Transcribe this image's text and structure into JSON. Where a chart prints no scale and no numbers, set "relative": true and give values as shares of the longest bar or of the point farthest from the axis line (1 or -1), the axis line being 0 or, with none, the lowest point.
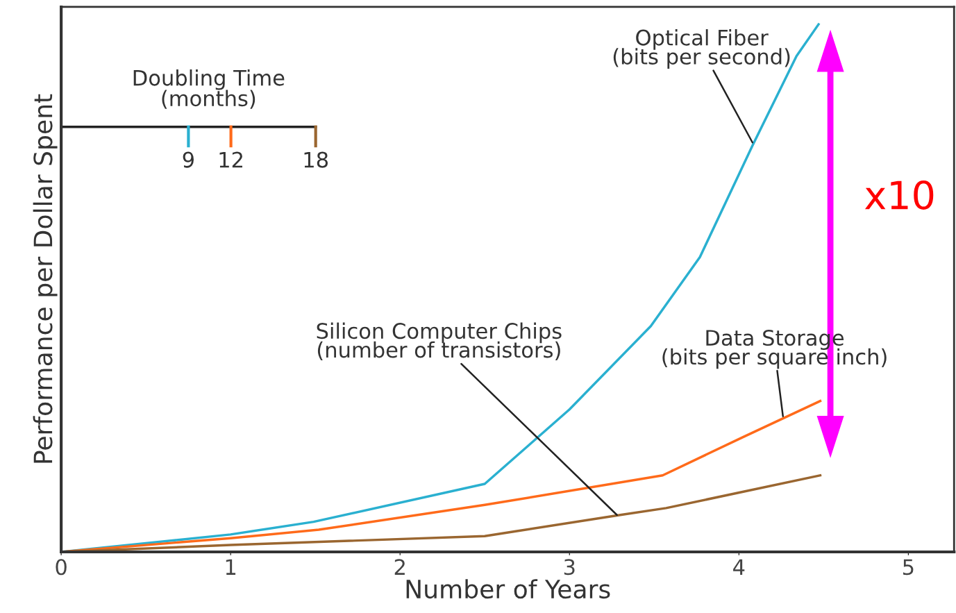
{
  "chart_data": {
    "type": "line",
    "relative": true,
    "xlabel": "Number of Years",
    "ylabel": "Performance per Dollar Spent",
    "legend_title": "Doubling Time\n(months)",
    "legend": "top left",
    "grid": false,
    "xlim": [
      0,
      5.27
    ],
    "xticks": [
      0,
      1,
      2,
      3,
      4,
      5
    ],
    "series": [
      {
        "name": "9",
        "color": "#2ab0d0",
        "x": [
          0,
          1,
          1.49,
          2.5,
          3,
          3.48,
          3.77,
          4.08,
          4.34,
          4.47
        ],
        "values": [
          0,
          0.033,
          0.057,
          0.129,
          0.27,
          0.428,
          0.559,
          0.77,
          0.94,
          1.0
        ]
      },
      {
        "name": "12",
        "color": "#ff6a1a",
        "x": [
          0,
          1,
          1.52,
          2.5,
          3.55,
          4.02,
          4.48
        ],
        "values": [
          0,
          0.026,
          0.042,
          0.089,
          0.145,
          0.217,
          0.286
        ]
      },
      {
        "name": "18",
        "color": "#9a6630",
        "x": [
          0,
          1,
          2.5,
          3.3,
          3.57,
          4.48
        ],
        "values": [
          0,
          0.013,
          0.03,
          0.07,
          0.083,
          0.145
        ]
      }
    ],
    "annotations": [
      {
        "text": "Optical Fiber\n(bits per second)",
        "x": 4.08,
        "y": 0.776
      },
      {
        "text": "Data Storage\n(bits per square inch)",
        "x": 4.26,
        "y": 0.257
      },
      {
        "text": "Silicon Computer Chips\n(number of transistors)",
        "x": 3.28,
        "y": 0.07
      },
      "x10"
    ]
  }
}
